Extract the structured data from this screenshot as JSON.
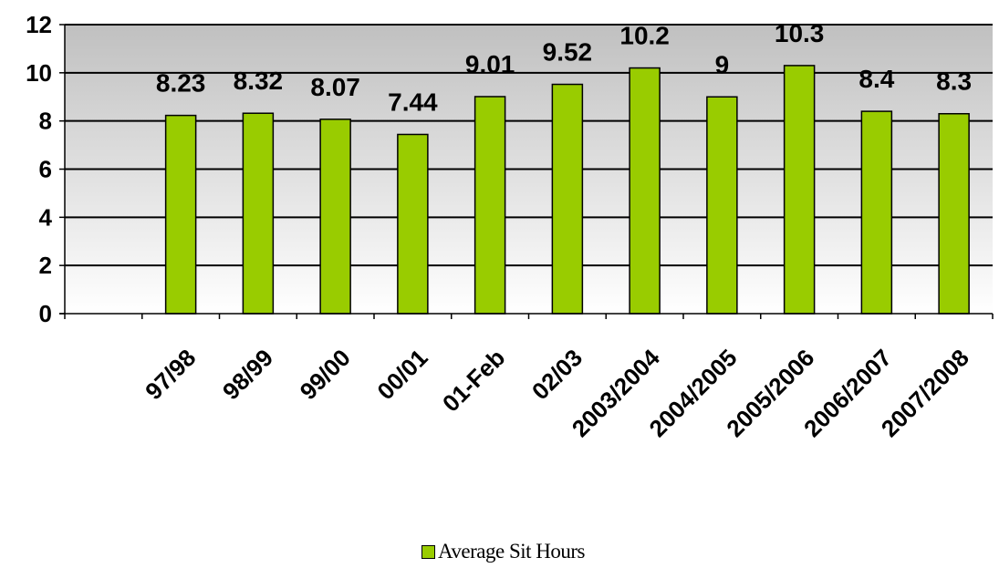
{
  "chart_data": {
    "type": "bar",
    "categories": [
      "97/98",
      "98/99",
      "99/00",
      "00/01",
      "01-Feb",
      "02/03",
      "2003/2004",
      "2004/2005",
      "2005/2006",
      "2006/2007",
      "2007/2008"
    ],
    "series": [
      {
        "name": "Average Sit Hours",
        "values": [
          8.23,
          8.32,
          8.07,
          7.44,
          9.01,
          9.52,
          10.2,
          9,
          10.3,
          8.4,
          8.3
        ],
        "data_labels": [
          "8.23",
          "8.32",
          "8.07",
          "7.44",
          "9.01",
          "9.52",
          "10.2",
          "9",
          "10.3",
          "8.4",
          "8.3"
        ]
      }
    ],
    "title": "",
    "xlabel": "",
    "ylabel": "",
    "ylim": [
      0,
      12
    ],
    "yticks": [
      0,
      2,
      4,
      6,
      8,
      10,
      12
    ],
    "grid": true,
    "legend_position": "bottom",
    "colors": {
      "bar_fill": "#99cc00",
      "bar_stroke": "#000000",
      "plot_bg_top": "#c0c0c0",
      "plot_bg_bottom": "#ffffff",
      "gridline": "#000000"
    }
  },
  "legend": {
    "label": "Average Sit Hours"
  }
}
